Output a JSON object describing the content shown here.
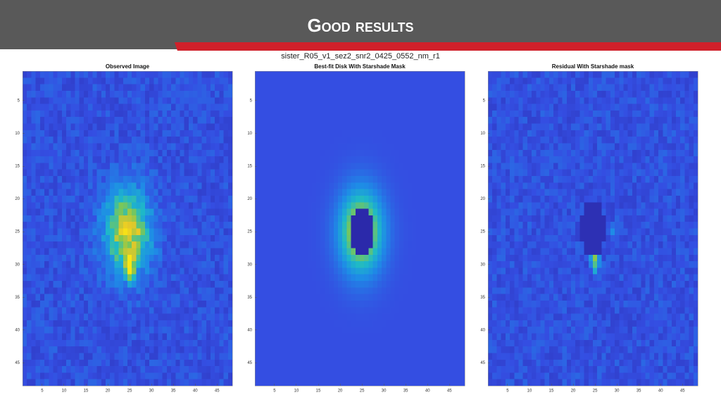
{
  "header": {
    "title": "Good results"
  },
  "figure": {
    "title": "sister_R05_v1_sez2_snr2_0425_0552_nm_r1",
    "panels": [
      {
        "title": "Observed Image",
        "xlim": [
          0.5,
          48.5
        ],
        "ylim": [
          0.5,
          48.5
        ],
        "xticks": [
          5,
          10,
          15,
          20,
          25,
          30,
          35,
          40,
          45
        ],
        "yticks": [
          5,
          10,
          15,
          20,
          25,
          30,
          35,
          40,
          45
        ]
      },
      {
        "title": "Best-fit Disk With Starshade Mask",
        "xlim": [
          0.5,
          48.5
        ],
        "ylim": [
          0.5,
          48.5
        ],
        "xticks": [
          5,
          10,
          15,
          20,
          25,
          30,
          35,
          40,
          45
        ],
        "yticks": [
          5,
          10,
          15,
          20,
          25,
          30,
          35,
          40,
          45
        ]
      },
      {
        "title": "Residual With Starshade mask",
        "xlim": [
          0.5,
          48.5
        ],
        "ylim": [
          0.5,
          48.5
        ],
        "xticks": [
          5,
          10,
          15,
          20,
          25,
          30,
          35,
          40,
          45
        ],
        "yticks": [
          5,
          10,
          15,
          20,
          25,
          30,
          35,
          40,
          45
        ]
      }
    ]
  }
}
